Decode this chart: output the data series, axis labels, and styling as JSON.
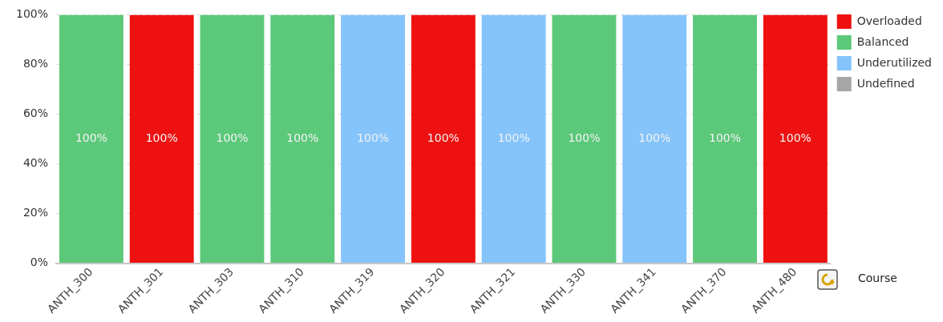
{
  "chart_data": {
    "type": "bar",
    "stacked": true,
    "xlabel": "Course",
    "categories": [
      "ANTH_300",
      "ANTH_301",
      "ANTH_303",
      "ANTH_310",
      "ANTH_319",
      "ANTH_320",
      "ANTH_321",
      "ANTH_330",
      "ANTH_341",
      "ANTH_370",
      "ANTH_480"
    ],
    "series": [
      {
        "name": "Overloaded",
        "color": "#ee1111",
        "values": [
          0,
          100,
          0,
          0,
          0,
          100,
          0,
          0,
          0,
          0,
          100
        ],
        "value_labels": [
          null,
          "100%",
          null,
          null,
          null,
          "100%",
          null,
          null,
          null,
          null,
          "100%"
        ]
      },
      {
        "name": "Balanced",
        "color": "#5cc87a",
        "values": [
          100,
          0,
          100,
          100,
          0,
          0,
          0,
          100,
          0,
          100,
          0
        ],
        "value_labels": [
          "100%",
          null,
          "100%",
          "100%",
          null,
          null,
          null,
          "100%",
          null,
          "100%",
          null
        ]
      },
      {
        "name": "Underutilized",
        "color": "#85c4fb",
        "values": [
          0,
          0,
          0,
          0,
          100,
          0,
          100,
          0,
          100,
          0,
          0
        ],
        "value_labels": [
          null,
          null,
          null,
          null,
          "100%",
          null,
          "100%",
          null,
          "100%",
          null,
          null
        ]
      },
      {
        "name": "Undefined",
        "color": "#a6a6a6",
        "values": [
          0,
          0,
          0,
          0,
          0,
          0,
          0,
          0,
          0,
          0,
          0
        ]
      }
    ],
    "ylim": [
      0,
      100
    ],
    "yticks": [
      {
        "value": 0,
        "label": "0%"
      },
      {
        "value": 20,
        "label": "20%"
      },
      {
        "value": 40,
        "label": "40%"
      },
      {
        "value": 60,
        "label": "60%"
      },
      {
        "value": 80,
        "label": "80%"
      },
      {
        "value": 100,
        "label": "100%"
      }
    ],
    "grid": "y",
    "legend": "top right"
  }
}
